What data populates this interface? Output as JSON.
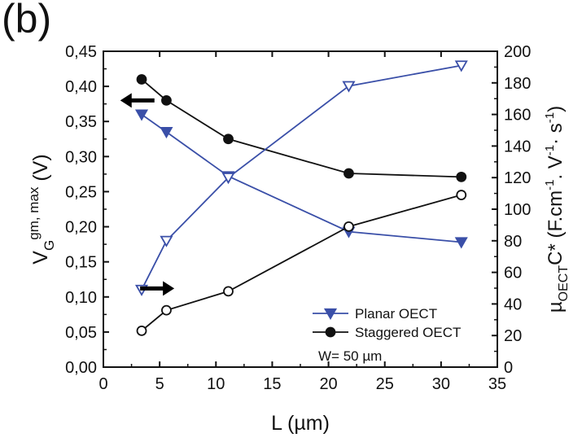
{
  "panel_label": "(b)",
  "chart_data": {
    "type": "line",
    "x": {
      "label": "L (µm)",
      "range": [
        0,
        35
      ],
      "ticks": [
        0,
        5,
        10,
        15,
        20,
        25,
        30,
        35
      ],
      "tick_labels": [
        "0",
        "5",
        "10",
        "15",
        "20",
        "25",
        "30",
        "35"
      ]
    },
    "y_left": {
      "label_base": "V",
      "label_sub": "G",
      "label_sup": "gm, max",
      "label_unit": " (V)",
      "range": [
        0,
        0.45
      ],
      "ticks": [
        0,
        0.05,
        0.1,
        0.15,
        0.2,
        0.25,
        0.3,
        0.35,
        0.4,
        0.45
      ],
      "tick_labels": [
        "0,00",
        "0,05",
        "0,10",
        "0,15",
        "0,20",
        "0,25",
        "0,30",
        "0,35",
        "0,40",
        "0,45"
      ]
    },
    "y_right": {
      "label_base": "µ",
      "label_sub": "OECT",
      "label_rest": "C* (F.cm",
      "label_sup1": "-1",
      "label_mid": ". V",
      "label_sup2": "-1",
      "label_mid2": "· s",
      "label_sup3": "-1",
      "label_end": ")",
      "range": [
        0,
        200
      ],
      "ticks": [
        0,
        20,
        40,
        60,
        80,
        100,
        120,
        140,
        160,
        180,
        200
      ],
      "tick_labels": [
        "0",
        "20",
        "40",
        "60",
        "80",
        "100",
        "120",
        "140",
        "160",
        "180",
        "200"
      ]
    },
    "series": [
      {
        "name": "Planar OECT",
        "axis": "left",
        "marker": "triangle-down-filled",
        "color": "#3a4fa8",
        "x": [
          3.4,
          5.6,
          11.1,
          21.8,
          31.8
        ],
        "y": [
          0.36,
          0.335,
          0.272,
          0.193,
          0.178
        ]
      },
      {
        "name": "Staggered OECT",
        "axis": "left",
        "marker": "circle-filled",
        "color": "#111111",
        "x": [
          3.4,
          5.6,
          11.1,
          21.8,
          31.8
        ],
        "y": [
          0.41,
          0.38,
          0.325,
          0.276,
          0.271
        ]
      },
      {
        "name": "",
        "axis": "right",
        "marker": "triangle-down-open",
        "color": "#3a4fa8",
        "x": [
          3.4,
          5.6,
          11.1,
          21.8,
          31.8
        ],
        "y": [
          49,
          80,
          120,
          178,
          191
        ]
      },
      {
        "name": "",
        "axis": "right",
        "marker": "circle-open",
        "color": "#111111",
        "x": [
          3.4,
          5.6,
          11.1,
          21.8,
          31.8
        ],
        "y": [
          23,
          36,
          48,
          89,
          109
        ]
      }
    ],
    "legend": {
      "placement": "bottom-right",
      "entries": [
        "Planar OECT",
        "Staggered OECT"
      ],
      "note": "W= 50 µm"
    },
    "annotations": [
      {
        "type": "arrow",
        "direction": "left",
        "meaning": "left axis",
        "x": 1.5,
        "y_left": 0.38
      },
      {
        "type": "arrow",
        "direction": "right",
        "meaning": "right axis",
        "x": 6.3,
        "y_left": 0.112
      }
    ],
    "grid": false
  }
}
